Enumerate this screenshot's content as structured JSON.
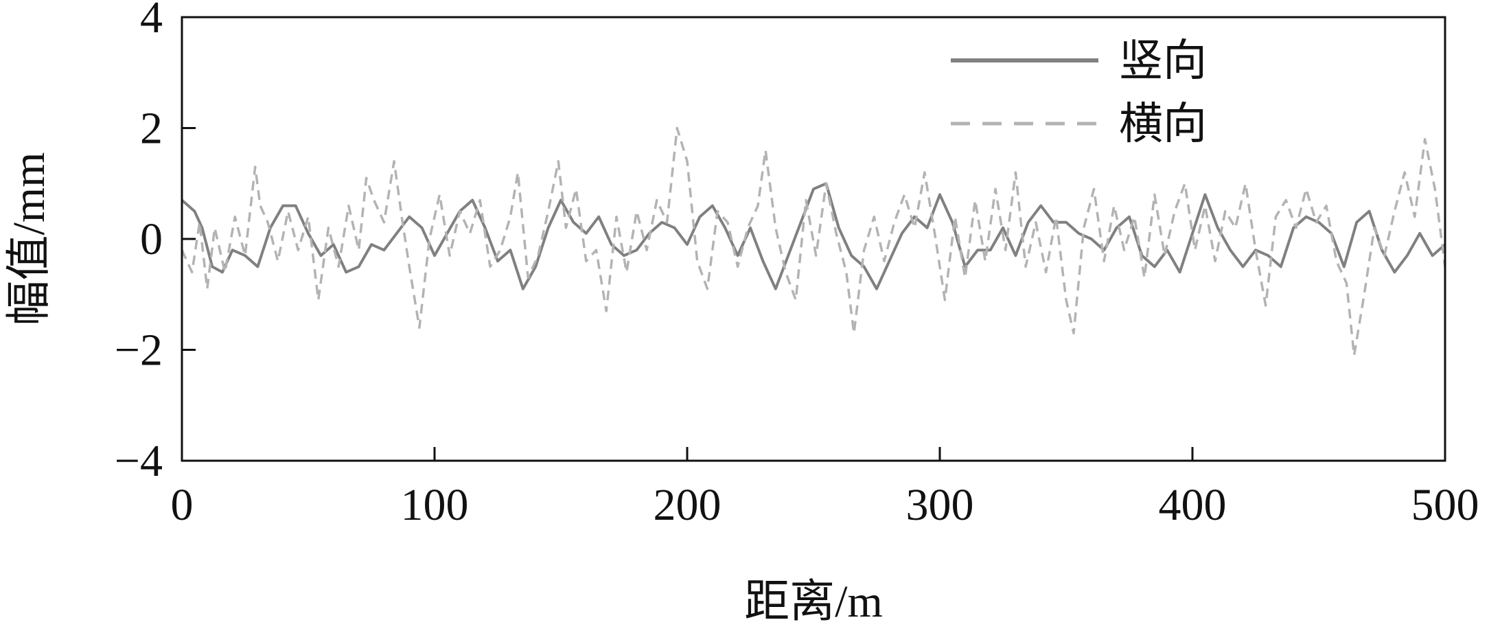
{
  "chart_data": {
    "type": "line",
    "xlabel": "距离/m",
    "ylabel": "幅值/mm",
    "xlim": [
      0,
      500
    ],
    "ylim": [
      -4,
      4
    ],
    "xticks": [
      0,
      100,
      200,
      300,
      400,
      500
    ],
    "yticks": [
      -4,
      -2,
      0,
      2,
      4
    ],
    "xtick_labels": [
      "0",
      "100",
      "200",
      "300",
      "400",
      "500"
    ],
    "ytick_labels": [
      "−4",
      "−2",
      "0",
      "2",
      "4"
    ],
    "grid": false,
    "legend_position": "top-right",
    "series": [
      {
        "name": "竖向",
        "color": "#808080",
        "line_style": "solid",
        "x": [
          0,
          5,
          8,
          12,
          16,
          20,
          25,
          30,
          35,
          40,
          45,
          50,
          55,
          60,
          65,
          70,
          75,
          80,
          85,
          90,
          95,
          100,
          105,
          110,
          115,
          120,
          125,
          130,
          135,
          140,
          145,
          150,
          155,
          160,
          165,
          170,
          175,
          180,
          185,
          190,
          195,
          200,
          205,
          210,
          215,
          220,
          225,
          230,
          235,
          240,
          245,
          250,
          255,
          260,
          265,
          270,
          275,
          280,
          285,
          290,
          295,
          300,
          305,
          310,
          315,
          320,
          325,
          330,
          335,
          340,
          345,
          350,
          355,
          360,
          365,
          370,
          375,
          380,
          385,
          390,
          395,
          400,
          405,
          410,
          415,
          420,
          425,
          430,
          435,
          440,
          445,
          450,
          455,
          460,
          465,
          470,
          475,
          480,
          485,
          490,
          495,
          500
        ],
        "y": [
          0.7,
          0.5,
          0.2,
          -0.5,
          -0.6,
          -0.2,
          -0.3,
          -0.5,
          0.2,
          0.6,
          0.6,
          0.1,
          -0.3,
          -0.1,
          -0.6,
          -0.5,
          -0.1,
          -0.2,
          0.1,
          0.4,
          0.2,
          -0.3,
          0.1,
          0.5,
          0.7,
          0.2,
          -0.4,
          -0.2,
          -0.9,
          -0.5,
          0.2,
          0.7,
          0.3,
          0.1,
          0.4,
          -0.1,
          -0.3,
          -0.2,
          0.1,
          0.3,
          0.2,
          -0.1,
          0.4,
          0.6,
          0.2,
          -0.3,
          0.2,
          -0.4,
          -0.9,
          -0.3,
          0.3,
          0.9,
          1.0,
          0.2,
          -0.3,
          -0.5,
          -0.9,
          -0.4,
          0.1,
          0.4,
          0.2,
          0.8,
          0.3,
          -0.5,
          -0.2,
          -0.2,
          0.2,
          -0.3,
          0.3,
          0.6,
          0.3,
          0.3,
          0.1,
          0.0,
          -0.2,
          0.2,
          0.4,
          -0.3,
          -0.5,
          -0.2,
          -0.6,
          0.1,
          0.8,
          0.2,
          -0.2,
          -0.5,
          -0.2,
          -0.3,
          -0.5,
          0.2,
          0.4,
          0.3,
          0.1,
          -0.5,
          0.3,
          0.5,
          -0.2,
          -0.6,
          -0.3,
          0.1,
          -0.3,
          -0.1
        ]
      },
      {
        "name": "横向",
        "color": "#b3b3b3",
        "line_style": "dashed",
        "x": [
          0,
          4,
          7,
          10,
          13,
          17,
          21,
          25,
          29,
          31,
          34,
          38,
          42,
          46,
          50,
          54,
          58,
          62,
          66,
          70,
          73,
          76,
          80,
          84,
          87,
          90,
          94,
          98,
          102,
          106,
          110,
          114,
          118,
          122,
          126,
          130,
          133,
          137,
          141,
          145,
          149,
          152,
          156,
          160,
          164,
          168,
          172,
          176,
          180,
          184,
          188,
          192,
          196,
          200,
          204,
          208,
          212,
          216,
          220,
          224,
          228,
          231,
          235,
          239,
          243,
          247,
          251,
          255,
          259,
          263,
          266,
          270,
          274,
          278,
          282,
          286,
          290,
          294,
          298,
          302,
          306,
          310,
          314,
          318,
          322,
          326,
          330,
          334,
          338,
          342,
          346,
          350,
          353,
          357,
          361,
          365,
          369,
          373,
          377,
          381,
          385,
          389,
          393,
          397,
          401,
          405,
          409,
          413,
          417,
          421,
          425,
          429,
          433,
          437,
          441,
          445,
          449,
          453,
          457,
          461,
          464,
          468,
          472,
          476,
          480,
          484,
          488,
          492,
          496,
          500
        ],
        "y": [
          -0.2,
          -0.6,
          0.3,
          -0.9,
          0.2,
          -0.6,
          0.4,
          -0.3,
          1.3,
          0.6,
          0.3,
          -0.4,
          0.5,
          -0.2,
          0.4,
          -1.1,
          0.2,
          -0.5,
          0.6,
          -0.2,
          1.1,
          0.7,
          0.3,
          1.4,
          0.4,
          -0.5,
          -1.6,
          0.0,
          0.8,
          -0.3,
          0.5,
          0.1,
          0.7,
          -0.5,
          -0.2,
          0.4,
          1.2,
          -0.7,
          -0.3,
          0.5,
          1.4,
          0.2,
          0.9,
          -0.4,
          -0.2,
          -1.3,
          0.4,
          -0.6,
          0.5,
          -0.2,
          0.7,
          0.3,
          2.0,
          1.4,
          -0.4,
          -0.9,
          0.5,
          0.3,
          -0.5,
          0.2,
          0.6,
          1.6,
          0.2,
          -0.6,
          -1.1,
          0.7,
          -0.3,
          1.0,
          0.1,
          -0.6,
          -1.7,
          -0.2,
          0.4,
          -0.4,
          0.3,
          0.8,
          0.2,
          1.2,
          0.1,
          -1.1,
          0.4,
          -0.7,
          0.7,
          -0.4,
          0.9,
          -0.2,
          1.2,
          -0.5,
          0.3,
          -0.6,
          0.4,
          -1.1,
          -1.7,
          0.2,
          0.9,
          -0.4,
          0.6,
          -0.2,
          0.4,
          -0.7,
          0.8,
          -0.3,
          0.5,
          1.0,
          -0.2,
          0.6,
          -0.4,
          0.5,
          0.2,
          1.0,
          -0.2,
          -1.2,
          0.4,
          0.7,
          0.2,
          0.9,
          0.3,
          0.6,
          -0.4,
          -0.8,
          -2.1,
          -1.0,
          0.2,
          -0.3,
          0.5,
          1.2,
          0.4,
          1.8,
          0.9,
          -0.5
        ]
      }
    ]
  }
}
